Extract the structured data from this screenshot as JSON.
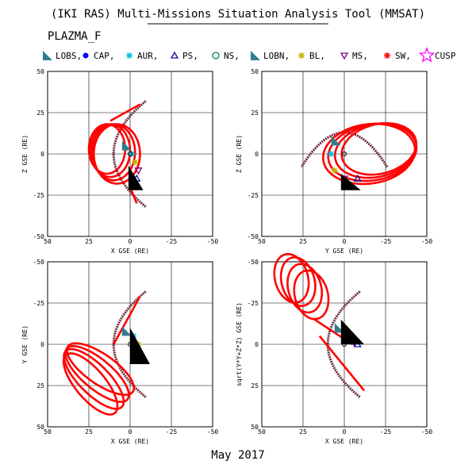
{
  "header": {
    "title": "(IKI RAS) Multi-Missions Situation Analysis Tool (MMSAT)",
    "mission": "PLAZMA_F",
    "footer": "May 2017"
  },
  "legend": [
    {
      "label": "LOBS,",
      "marker": "triangle-filled-icon",
      "color": "#2f7f8f"
    },
    {
      "label": "CAP,",
      "marker": "dot-filled-icon",
      "color": "#0000ff"
    },
    {
      "label": "AUR,",
      "marker": "asterisk-icon",
      "color": "#00c0e0"
    },
    {
      "label": "PS,",
      "marker": "triangle-up-open-icon",
      "color": "#1010a0"
    },
    {
      "label": "NS,",
      "marker": "circle-open-icon",
      "color": "#008060"
    },
    {
      "label": "LOBN,",
      "marker": "triangle-filled-icon",
      "color": "#2f7f8f"
    },
    {
      "label": "BL,",
      "marker": "asterisk-icon",
      "color": "#c8b400"
    },
    {
      "label": "MS,",
      "marker": "triangle-down-open-icon",
      "color": "#800080"
    },
    {
      "label": "SW,",
      "marker": "asterisk-icon",
      "color": "#ff0000"
    },
    {
      "label": "CUSP",
      "marker": "star-open-icon",
      "color": "#ff00ff"
    }
  ],
  "colors": {
    "orbit": "#ff0000",
    "boundary": "#6b2a3a",
    "wedge": "#000000",
    "earth": "#000000"
  },
  "chart_data": [
    {
      "type": "scatter",
      "panel": "top-left",
      "xlabel": "X GSE (RE)",
      "ylabel": "Z GSE (RE)",
      "xlim": [
        50,
        -50
      ],
      "ylim": [
        -50,
        50
      ],
      "xticks": [
        50,
        25,
        0,
        -25,
        -50
      ],
      "yticks": [
        50,
        25,
        0,
        -25,
        -50
      ],
      "grid": true,
      "y_flip": false,
      "magnetopause": {
        "x0": 10,
        "a": 0.019,
        "y_from": -32,
        "y_to": 32
      },
      "orbit_loops": [
        {
          "c": [
            8,
            0
          ],
          "rx": 14,
          "ry": 18,
          "tilt": 0
        },
        {
          "c": [
            10,
            1
          ],
          "rx": 13,
          "ry": 17,
          "tilt": 0
        },
        {
          "c": [
            12,
            2
          ],
          "rx": 12,
          "ry": 16,
          "tilt": 0
        },
        {
          "c": [
            14,
            3
          ],
          "rx": 11,
          "ry": 15,
          "tilt": 0
        }
      ],
      "orbit_lines": [
        {
          "from": [
            0,
            -20
          ],
          "to": [
            -4,
            -30
          ]
        },
        {
          "from": [
            12,
            20
          ],
          "to": [
            -6,
            30
          ]
        }
      ],
      "wedge": [
        [
          1,
          -7
        ],
        [
          1,
          -22
        ],
        [
          -8,
          -22
        ]
      ],
      "region_points": [
        [
          2,
          5
        ],
        [
          -1,
          0
        ],
        [
          -3,
          -5
        ],
        [
          -5,
          -10
        ],
        [
          -4,
          -15
        ]
      ]
    },
    {
      "type": "scatter",
      "panel": "top-right",
      "xlabel": "Y GSE (RE)",
      "ylabel": "Z GSE (RE)",
      "xlim": [
        50,
        -50
      ],
      "ylim": [
        -50,
        50
      ],
      "xticks": [
        50,
        25,
        0,
        -25,
        -50
      ],
      "yticks": [
        50,
        25,
        0,
        -25,
        -50
      ],
      "grid": true,
      "y_flip": false,
      "magnetopause": {
        "x0": 13,
        "a": 0.031,
        "y_from": -26,
        "y_to": 26,
        "transposed": true
      },
      "orbit_loops": [
        {
          "c": [
            -15,
            0
          ],
          "rx": 28,
          "ry": 18,
          "tilt": -8
        },
        {
          "c": [
            -17,
            1
          ],
          "rx": 27,
          "ry": 17,
          "tilt": -10
        },
        {
          "c": [
            -19,
            2
          ],
          "rx": 25,
          "ry": 16,
          "tilt": -12
        },
        {
          "c": [
            -21,
            3
          ],
          "rx": 23,
          "ry": 15,
          "tilt": -14
        }
      ],
      "orbit_lines": [],
      "wedge": [
        [
          2,
          -12
        ],
        [
          2,
          -22
        ],
        [
          -10,
          -22
        ]
      ],
      "region_points": [
        [
          5,
          8
        ],
        [
          8,
          0
        ],
        [
          6,
          -10
        ],
        [
          0,
          -15
        ],
        [
          -8,
          -15
        ]
      ]
    },
    {
      "type": "scatter",
      "panel": "bottom-left",
      "xlabel": "X GSE (RE)",
      "ylabel": "Y GSE (RE)",
      "xlim": [
        50,
        -50
      ],
      "ylim": [
        -50,
        50
      ],
      "xticks": [
        50,
        25,
        0,
        -25,
        -50
      ],
      "yticks": [
        -50,
        -25,
        0,
        25,
        50
      ],
      "grid": true,
      "y_flip": true,
      "magnetopause": {
        "x0": 10,
        "a": 0.019,
        "y_from": -32,
        "y_to": 32
      },
      "orbit_loops": [
        {
          "c": [
            18,
            15
          ],
          "rx": 24,
          "ry": 9,
          "tilt": -35
        },
        {
          "c": [
            20,
            18
          ],
          "rx": 24,
          "ry": 9,
          "tilt": -40
        },
        {
          "c": [
            22,
            21
          ],
          "rx": 24,
          "ry": 9,
          "tilt": -45
        },
        {
          "c": [
            24,
            24
          ],
          "rx": 23,
          "ry": 9,
          "tilt": -50
        }
      ],
      "orbit_lines": [
        {
          "from": [
            10,
            0
          ],
          "to": [
            -6,
            -29
          ]
        }
      ],
      "wedge": [
        [
          0,
          -10
        ],
        [
          0,
          12
        ],
        [
          -12,
          12
        ]
      ],
      "region_points": [
        [
          2,
          -8
        ],
        [
          -2,
          -5
        ],
        [
          -5,
          0
        ],
        [
          -4,
          5
        ],
        [
          -2,
          10
        ]
      ]
    },
    {
      "type": "scatter",
      "panel": "bottom-right",
      "xlabel": "X GSE (RE)",
      "ylabel": "sqrt(Y*Y+Z*Z) GSE (RE)",
      "xlim": [
        50,
        -50
      ],
      "ylim": [
        -50,
        50
      ],
      "xticks": [
        50,
        25,
        0,
        -25,
        -50
      ],
      "yticks": [
        -50,
        -25,
        0,
        25,
        50
      ],
      "grid": true,
      "y_flip": true,
      "magnetopause": {
        "x0": 10,
        "a": 0.019,
        "y_from": -32,
        "y_to": 32
      },
      "orbit_loops": [
        {
          "c": [
            20,
            -30
          ],
          "rx": 10,
          "ry": 15,
          "tilt": 15
        },
        {
          "c": [
            24,
            -34
          ],
          "rx": 10,
          "ry": 15,
          "tilt": 15
        },
        {
          "c": [
            28,
            -38
          ],
          "rx": 10,
          "ry": 15,
          "tilt": 15
        },
        {
          "c": [
            32,
            -40
          ],
          "rx": 10,
          "ry": 15,
          "tilt": 15
        }
      ],
      "orbit_lines": [
        {
          "from": [
            18,
            -15
          ],
          "to": [
            -5,
            0
          ]
        },
        {
          "from": [
            15,
            -5
          ],
          "to": [
            -12,
            28
          ]
        }
      ],
      "wedge": [
        [
          2,
          -15
        ],
        [
          2,
          0
        ],
        [
          -12,
          0
        ]
      ],
      "region_points": [
        [
          3,
          -10
        ],
        [
          0,
          -5
        ],
        [
          -3,
          -3
        ],
        [
          -6,
          -1
        ],
        [
          -8,
          0
        ]
      ]
    }
  ]
}
